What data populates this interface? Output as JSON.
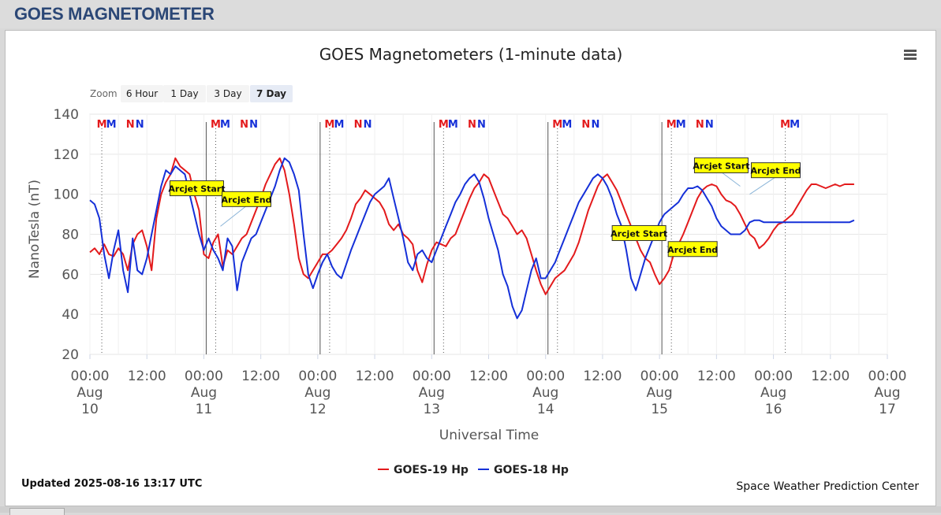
{
  "header": {
    "title": "GOES MAGNETOMETER"
  },
  "chart": {
    "title": "GOES Magnetometers (1-minute data)",
    "zoom_label": "Zoom",
    "zoom_buttons": [
      "6 Hour",
      "1 Day",
      "3 Day",
      "7 Day"
    ],
    "zoom_selected": "7 Day",
    "updated": "Updated 2025-08-16 13:17 UTC",
    "credit": "Space Weather Prediction Center",
    "colors": {
      "goes19": "#e31a1c",
      "goes18": "#1530d8",
      "annotation_fill": "#ffff00",
      "grid": "#e6e6e6"
    }
  },
  "chart_data": {
    "type": "line",
    "title": "GOES Magnetometers (1-minute data)",
    "xlabel": "Universal Time",
    "ylabel": "NanoTesla (nT)",
    "ylim": [
      20,
      140
    ],
    "yticks": [
      20,
      40,
      60,
      80,
      100,
      120,
      140
    ],
    "xlim": [
      "2025-08-10 00:00",
      "2025-08-17 00:00"
    ],
    "xticks": [
      {
        "time": "00:00",
        "date": "Aug",
        "day": "10"
      },
      {
        "time": "12:00",
        "date": "",
        "day": ""
      },
      {
        "time": "00:00",
        "date": "Aug",
        "day": "11"
      },
      {
        "time": "12:00",
        "date": "",
        "day": ""
      },
      {
        "time": "00:00",
        "date": "Aug",
        "day": "12"
      },
      {
        "time": "12:00",
        "date": "",
        "day": ""
      },
      {
        "time": "00:00",
        "date": "Aug",
        "day": "13"
      },
      {
        "time": "12:00",
        "date": "",
        "day": ""
      },
      {
        "time": "00:00",
        "date": "Aug",
        "day": "14"
      },
      {
        "time": "12:00",
        "date": "",
        "day": ""
      },
      {
        "time": "00:00",
        "date": "Aug",
        "day": "15"
      },
      {
        "time": "12:00",
        "date": "",
        "day": ""
      },
      {
        "time": "00:00",
        "date": "Aug",
        "day": "16"
      },
      {
        "time": "12:00",
        "date": "",
        "day": ""
      },
      {
        "time": "00:00",
        "date": "Aug",
        "day": "17"
      }
    ],
    "legend_placement": "bottom-center",
    "grid": true,
    "series": [
      {
        "name": "GOES-19 Hp",
        "color": "#e31a1c",
        "hours": [
          0,
          1,
          2,
          3,
          4,
          5,
          6,
          7,
          8,
          9,
          10,
          11,
          12,
          13,
          14,
          15,
          16,
          17,
          18,
          19,
          20,
          21,
          22,
          23,
          24,
          25,
          26,
          27,
          28,
          29,
          30,
          31,
          32,
          33,
          34,
          35,
          36,
          37,
          38,
          39,
          40,
          41,
          42,
          43,
          44,
          45,
          46,
          47,
          48,
          49,
          50,
          51,
          52,
          53,
          54,
          55,
          56,
          57,
          58,
          59,
          60,
          61,
          62,
          63,
          64,
          65,
          66,
          67,
          68,
          69,
          70,
          71,
          72,
          73,
          74,
          75,
          76,
          77,
          78,
          79,
          80,
          81,
          82,
          83,
          84,
          85,
          86,
          87,
          88,
          89,
          90,
          91,
          92,
          93,
          94,
          95,
          96,
          97,
          98,
          99,
          100,
          101,
          102,
          103,
          104,
          105,
          106,
          107,
          108,
          109,
          110,
          111,
          112,
          113,
          114,
          115,
          116,
          117,
          118,
          119,
          120,
          121,
          122,
          123,
          124,
          125,
          126,
          127,
          128,
          129,
          130,
          131,
          132,
          133,
          134,
          135,
          136,
          137,
          138,
          139,
          140,
          141,
          142,
          143,
          144,
          145,
          146,
          147,
          148,
          149,
          150,
          151,
          152,
          153,
          154,
          155,
          156,
          157,
          158,
          159,
          160,
          161
        ],
        "values": [
          71,
          73,
          70,
          75,
          70,
          69,
          73,
          70,
          62,
          75,
          80,
          82,
          74,
          62,
          88,
          100,
          106,
          110,
          118,
          114,
          112,
          110,
          100,
          92,
          70,
          68,
          76,
          80,
          64,
          72,
          70,
          74,
          78,
          80,
          86,
          92,
          98,
          105,
          110,
          115,
          118,
          112,
          100,
          85,
          68,
          60,
          58,
          62,
          66,
          70,
          70,
          72,
          75,
          78,
          82,
          88,
          95,
          98,
          102,
          100,
          98,
          96,
          92,
          85,
          82,
          85,
          80,
          78,
          75,
          62,
          56,
          65,
          72,
          76,
          75,
          74,
          78,
          80,
          86,
          92,
          98,
          103,
          106,
          110,
          108,
          102,
          96,
          90,
          88,
          84,
          80,
          82,
          78,
          70,
          62,
          55,
          50,
          54,
          58,
          60,
          62,
          66,
          70,
          76,
          84,
          92,
          98,
          104,
          108,
          110,
          106,
          102,
          96,
          90,
          84,
          78,
          72,
          68,
          66,
          60,
          55,
          58,
          62,
          70,
          75,
          80,
          86,
          92,
          98,
          102,
          104,
          105,
          104,
          100,
          97,
          96,
          94,
          90,
          85,
          80,
          78,
          73,
          75,
          78,
          82,
          85,
          86,
          88,
          90,
          94,
          98,
          102,
          105,
          105,
          104,
          103,
          104,
          105,
          104,
          105,
          105,
          105
        ]
      },
      {
        "name": "GOES-18 Hp",
        "color": "#1530d8",
        "hours": [
          0,
          1,
          2,
          3,
          4,
          5,
          6,
          7,
          8,
          9,
          10,
          11,
          12,
          13,
          14,
          15,
          16,
          17,
          18,
          19,
          20,
          21,
          22,
          23,
          24,
          25,
          26,
          27,
          28,
          29,
          30,
          31,
          32,
          33,
          34,
          35,
          36,
          37,
          38,
          39,
          40,
          41,
          42,
          43,
          44,
          45,
          46,
          47,
          48,
          49,
          50,
          51,
          52,
          53,
          54,
          55,
          56,
          57,
          58,
          59,
          60,
          61,
          62,
          63,
          64,
          65,
          66,
          67,
          68,
          69,
          70,
          71,
          72,
          73,
          74,
          75,
          76,
          77,
          78,
          79,
          80,
          81,
          82,
          83,
          84,
          85,
          86,
          87,
          88,
          89,
          90,
          91,
          92,
          93,
          94,
          95,
          96,
          97,
          98,
          99,
          100,
          101,
          102,
          103,
          104,
          105,
          106,
          107,
          108,
          109,
          110,
          111,
          112,
          113,
          114,
          115,
          116,
          117,
          118,
          119,
          120,
          121,
          122,
          123,
          124,
          125,
          126,
          127,
          128,
          129,
          130,
          131,
          132,
          133,
          134,
          135,
          136,
          137,
          138,
          139,
          140,
          141,
          142,
          143,
          144,
          145,
          146,
          147,
          148,
          149,
          150,
          151,
          152,
          153,
          154,
          155,
          156,
          157,
          158,
          159,
          160,
          161
        ],
        "values": [
          97,
          95,
          88,
          70,
          58,
          72,
          82,
          62,
          51,
          78,
          62,
          60,
          68,
          80,
          92,
          104,
          112,
          110,
          114,
          112,
          110,
          100,
          90,
          80,
          72,
          78,
          72,
          68,
          62,
          78,
          74,
          52,
          66,
          72,
          78,
          80,
          86,
          92,
          98,
          104,
          112,
          118,
          116,
          110,
          102,
          80,
          60,
          53,
          60,
          66,
          70,
          64,
          60,
          58,
          65,
          72,
          78,
          84,
          90,
          96,
          100,
          102,
          104,
          108,
          98,
          88,
          78,
          66,
          62,
          70,
          72,
          68,
          66,
          72,
          78,
          84,
          90,
          96,
          100,
          105,
          108,
          110,
          106,
          98,
          88,
          80,
          72,
          60,
          54,
          44,
          38,
          42,
          52,
          62,
          68,
          58,
          58,
          62,
          66,
          72,
          78,
          84,
          90,
          96,
          100,
          104,
          108,
          110,
          108,
          104,
          98,
          90,
          84,
          72,
          58,
          52,
          60,
          68,
          74,
          80,
          86,
          90,
          92,
          94,
          96,
          100,
          103,
          103,
          104,
          102,
          98,
          94,
          88,
          84,
          82,
          80,
          80,
          80,
          82,
          86,
          87,
          87,
          86,
          86,
          86,
          86,
          86,
          86,
          86,
          86,
          86,
          86,
          86,
          86,
          86,
          86,
          86,
          86,
          86,
          86,
          86,
          87
        ]
      }
    ],
    "markers": [
      {
        "hour": 2.5,
        "label": "M",
        "color": "#e31a1c"
      },
      {
        "hour": 4.5,
        "label": "M",
        "color": "#1530d8"
      },
      {
        "hour": 8.5,
        "label": "N",
        "color": "#e31a1c"
      },
      {
        "hour": 10.5,
        "label": "N",
        "color": "#1530d8"
      },
      {
        "hour": 26.5,
        "label": "M",
        "color": "#e31a1c"
      },
      {
        "hour": 28.5,
        "label": "M",
        "color": "#1530d8"
      },
      {
        "hour": 32.5,
        "label": "N",
        "color": "#e31a1c"
      },
      {
        "hour": 34.5,
        "label": "N",
        "color": "#1530d8"
      },
      {
        "hour": 50.5,
        "label": "M",
        "color": "#e31a1c"
      },
      {
        "hour": 52.5,
        "label": "M",
        "color": "#1530d8"
      },
      {
        "hour": 56.5,
        "label": "N",
        "color": "#e31a1c"
      },
      {
        "hour": 58.5,
        "label": "N",
        "color": "#1530d8"
      },
      {
        "hour": 74.5,
        "label": "M",
        "color": "#e31a1c"
      },
      {
        "hour": 76.5,
        "label": "M",
        "color": "#1530d8"
      },
      {
        "hour": 80.5,
        "label": "N",
        "color": "#e31a1c"
      },
      {
        "hour": 82.5,
        "label": "N",
        "color": "#1530d8"
      },
      {
        "hour": 98.5,
        "label": "M",
        "color": "#e31a1c"
      },
      {
        "hour": 100.5,
        "label": "M",
        "color": "#1530d8"
      },
      {
        "hour": 104.5,
        "label": "N",
        "color": "#e31a1c"
      },
      {
        "hour": 106.5,
        "label": "N",
        "color": "#1530d8"
      },
      {
        "hour": 122.5,
        "label": "M",
        "color": "#e31a1c"
      },
      {
        "hour": 124.5,
        "label": "M",
        "color": "#1530d8"
      },
      {
        "hour": 128.5,
        "label": "N",
        "color": "#e31a1c"
      },
      {
        "hour": 130.5,
        "label": "N",
        "color": "#1530d8"
      },
      {
        "hour": 146.5,
        "label": "M",
        "color": "#e31a1c"
      },
      {
        "hour": 148.5,
        "label": "M",
        "color": "#1530d8"
      }
    ],
    "vlines_solid_hours": [
      24,
      48,
      72,
      96,
      120
    ],
    "vlines_dotted_hours": [
      2.5,
      26.5,
      50.5,
      74.5,
      98.5,
      122.5,
      146.5
    ],
    "annotations": [
      {
        "label": "Arcjet Start",
        "hour": 26.5,
        "value": 102
      },
      {
        "label": "Arcjet End",
        "hour": 27.5,
        "value": 84
      },
      {
        "label": "Arcjet Start",
        "hour": 120.0,
        "value": 80
      },
      {
        "label": "Arcjet End",
        "hour": 121.5,
        "value": 74
      },
      {
        "label": "Arcjet Start",
        "hour": 137.0,
        "value": 104
      },
      {
        "label": "Arcjet End",
        "hour": 139.0,
        "value": 100
      }
    ]
  }
}
